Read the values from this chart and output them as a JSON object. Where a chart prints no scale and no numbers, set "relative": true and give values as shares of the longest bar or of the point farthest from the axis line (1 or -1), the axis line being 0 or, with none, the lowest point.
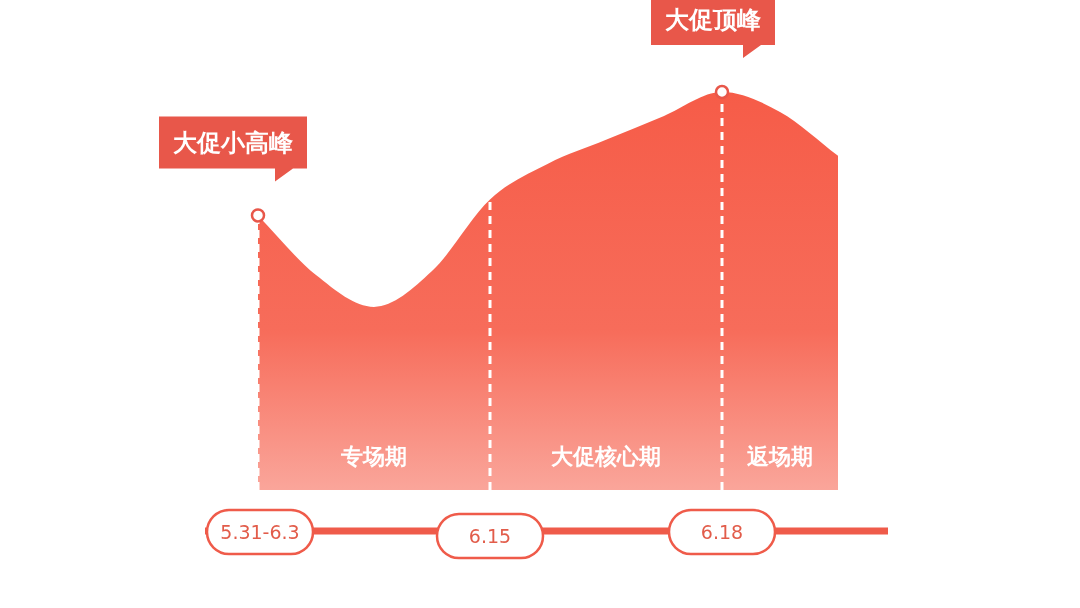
{
  "chart_data": {
    "type": "area",
    "relative": true,
    "categories": [
      "5.31-6.3",
      null,
      null,
      null,
      "6.15",
      null,
      null,
      null,
      "6.18",
      null,
      null
    ],
    "series": [
      {
        "color": "#f65c48",
        "values": [
          0.69,
          0.54,
          0.46,
          0.55,
          0.73,
          0.82,
          0.88,
          0.94,
          1,
          0.95,
          0.84
        ]
      }
    ],
    "marker": "none",
    "ref_lines": [
      {
        "axis": "x",
        "value": "5.31-6.3",
        "color": "#ffffff",
        "line_style": "dashed"
      },
      {
        "axis": "x",
        "value": "6.15",
        "color": "#ffffff",
        "line_style": "dashed"
      },
      {
        "axis": "x",
        "value": "6.18",
        "color": "#ffffff",
        "line_style": "dashed"
      }
    ],
    "annotations": [
      "专场期",
      "大促核心期",
      "返场期",
      {
        "text": "大促小高峰",
        "x": "5.31-6.3",
        "y": 0.69
      },
      {
        "text": "大促顶峰",
        "x": "6.18",
        "y": 1
      }
    ]
  }
}
